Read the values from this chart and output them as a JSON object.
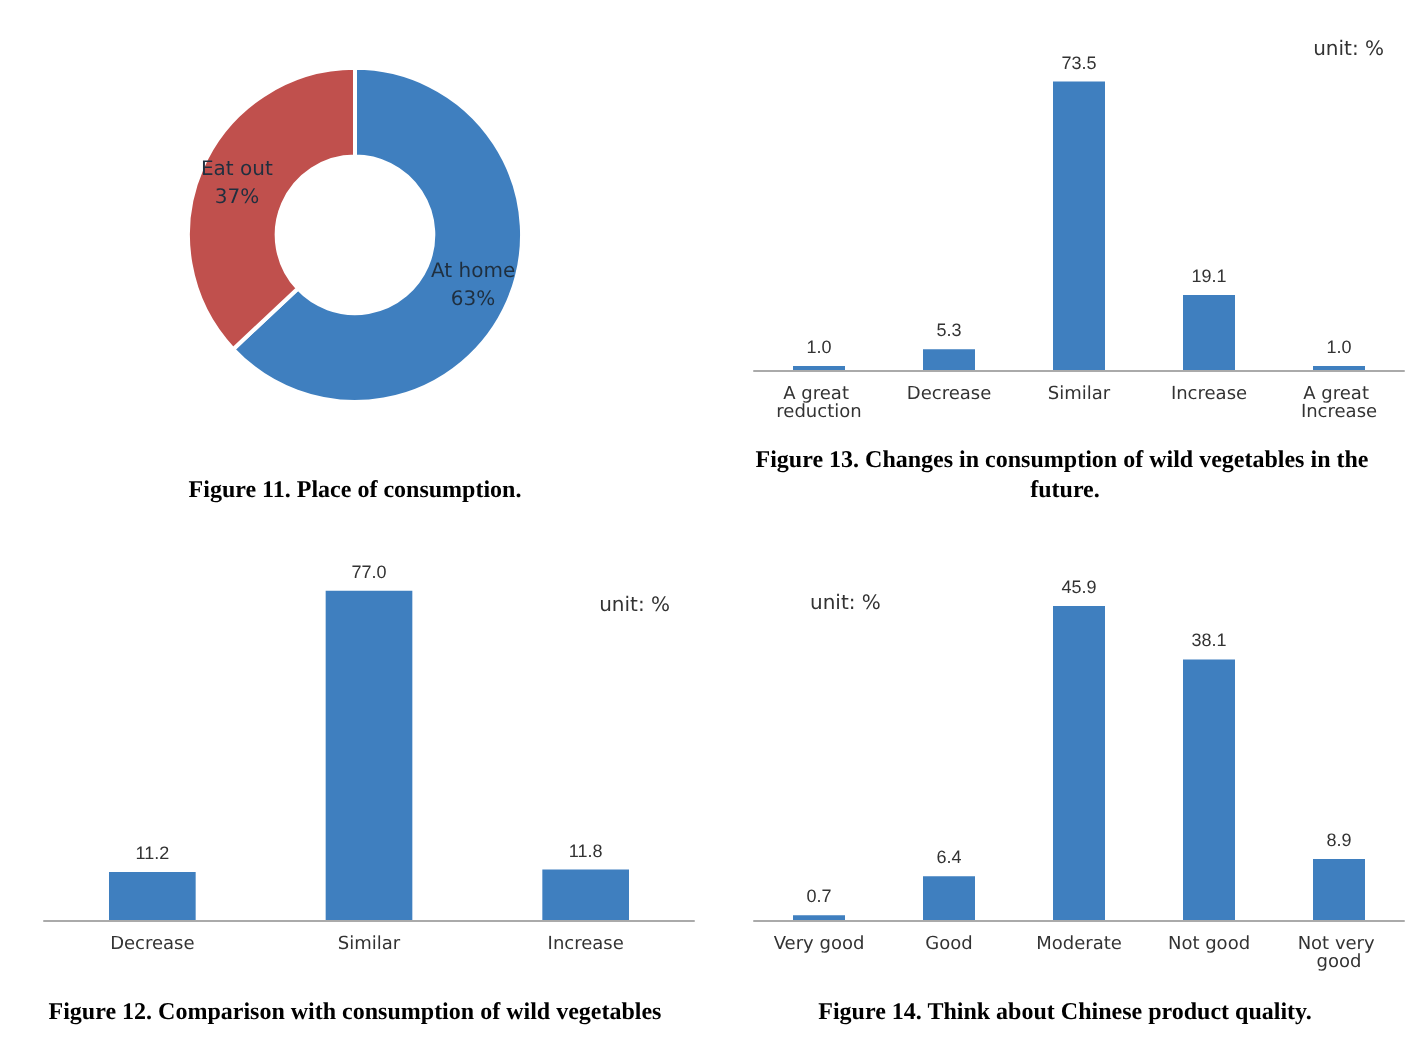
{
  "chart_data": [
    {
      "type": "donut",
      "title": "Figure 11. Place of consumption.",
      "categories": [
        "At home",
        "Eat out"
      ],
      "values": [
        63,
        37
      ],
      "value_labels": [
        "63%",
        "37%"
      ],
      "colors": [
        "#3f7fbf",
        "#c0504d"
      ]
    },
    {
      "type": "bar",
      "title": "Figure 13. Changes in consumption of wild vegetables in the future.",
      "categories": [
        "A great reduction",
        "Decrease",
        "Similar",
        "Increase",
        "A great Increase"
      ],
      "values": [
        1.0,
        5.3,
        73.5,
        19.1,
        1.0
      ],
      "value_labels": [
        "1.0",
        "5.3",
        "73.5",
        "19.1",
        "1.0"
      ],
      "color": "#3f7fbf",
      "annotations": [
        "unit: %"
      ],
      "tick_labels": "x"
    },
    {
      "type": "bar",
      "title": "Figure 12. Comparison with consumption of wild vegetables",
      "categories": [
        "Decrease",
        "Similar",
        "Increase"
      ],
      "values": [
        11.2,
        77.0,
        11.8
      ],
      "value_labels": [
        "11.2",
        "77.0",
        "11.8"
      ],
      "color": "#3f7fbf",
      "annotations": [
        "unit: %"
      ],
      "tick_labels": "x"
    },
    {
      "type": "bar",
      "title": "Figure 14. Think about Chinese product quality.",
      "categories": [
        "Very good",
        "Good",
        "Moderate",
        "Not good",
        "Not very good"
      ],
      "values": [
        0.7,
        6.4,
        45.9,
        38.1,
        8.9
      ],
      "value_labels": [
        "0.7",
        "6.4",
        "45.9",
        "38.1",
        "8.9"
      ],
      "color": "#3f7fbf",
      "annotations": [
        "unit: %"
      ],
      "tick_labels": "x"
    }
  ]
}
